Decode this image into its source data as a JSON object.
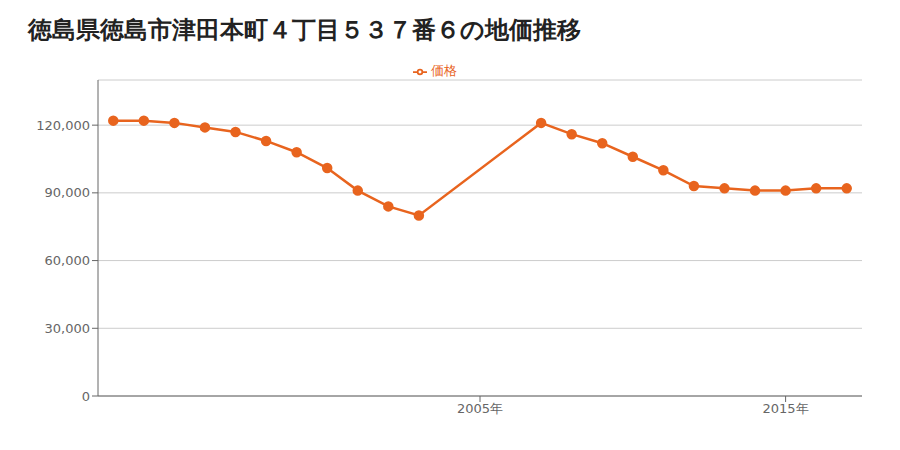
{
  "chart_data": {
    "type": "line",
    "title": "徳島県徳島市津田本町４丁目５３７番６の地価推移",
    "x": [
      1993,
      1994,
      1995,
      1996,
      1997,
      1998,
      1999,
      2000,
      2001,
      2002,
      2003,
      2007,
      2008,
      2009,
      2010,
      2011,
      2012,
      2013,
      2014,
      2015,
      2016,
      2017
    ],
    "series": [
      {
        "name": "価格",
        "color": "#e8641e",
        "marker": "circle",
        "values": [
          122000,
          122000,
          121000,
          119000,
          117000,
          113000,
          108000,
          101000,
          91000,
          84000,
          80000,
          121000,
          116000,
          112000,
          106000,
          100000,
          93000,
          92000,
          91000,
          91000,
          92000,
          92000
        ]
      }
    ],
    "xlim": [
      1992.5,
      2017.5
    ],
    "xticks": [
      {
        "value": 2005,
        "label": "2005年"
      },
      {
        "value": 2015,
        "label": "2015年"
      }
    ],
    "ylim": [
      0,
      140000
    ],
    "yticks": [
      0,
      {
        "value": 30000,
        "label": "30,000"
      },
      {
        "value": 60000,
        "label": "60,000"
      },
      {
        "value": 90000,
        "label": "90,000"
      },
      {
        "value": 120000,
        "label": "120,000"
      }
    ],
    "grid": "y",
    "legend": "top"
  }
}
